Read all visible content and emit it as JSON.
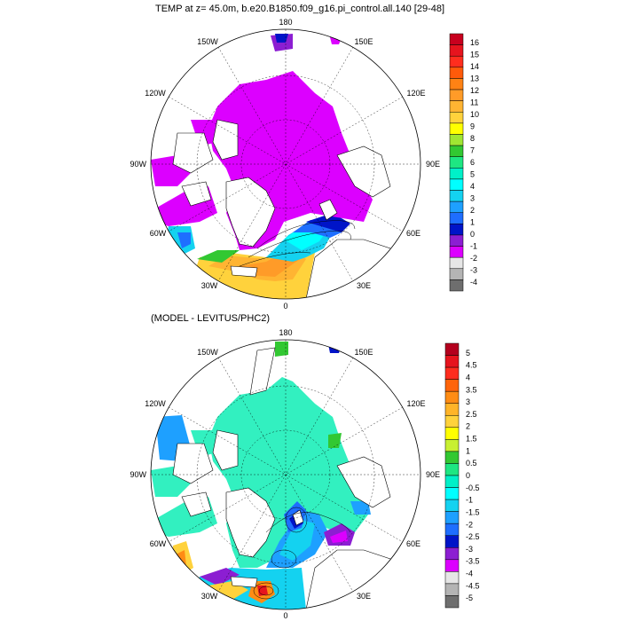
{
  "panels": [
    {
      "title": "TEMP at z=  45.0m, b.e20.B1850.f09_g16.pi_control.all.140 [29-48]",
      "lon_labels": {
        "top": "180",
        "bottom": "0",
        "ul": "150W",
        "ur": "150E",
        "l1": "120W",
        "r1": "120E",
        "l2": "90W",
        "r2": "90E",
        "l3": "60W",
        "r3": "60E",
        "ll": "30W",
        "lr": "30E"
      },
      "colorbar": {
        "labels": [
          "16",
          "15",
          "14",
          "13",
          "12",
          "11",
          "10",
          "9",
          "8",
          "7",
          "6",
          "5",
          "4",
          "3",
          "2",
          "1",
          "0",
          "-1",
          "-2",
          "-3",
          "-4"
        ],
        "colors": [
          "#c8001e",
          "#e6141e",
          "#ff2d1e",
          "#ff5a0a",
          "#ff8214",
          "#ff9b28",
          "#ffb432",
          "#ffd23c",
          "#ffff00",
          "#a0e632",
          "#32c832",
          "#1ee682",
          "#00f0c8",
          "#00ffff",
          "#14d2f0",
          "#1ea0ff",
          "#1e6eff",
          "#0014c8",
          "#8c1ed2",
          "#dc00ff",
          "#e6e6e6",
          "#b4b4b4",
          "#6e6e6e"
        ]
      }
    },
    {
      "title": "(MODEL - LEVITUS/PHC2)",
      "lon_labels": {
        "top": "180",
        "bottom": "0",
        "ul": "150W",
        "ur": "150E",
        "l1": "120W",
        "r1": "120E",
        "l2": "90W",
        "r2": "90E",
        "l3": "60W",
        "r3": "60E",
        "ll": "30W",
        "lr": "30E"
      },
      "colorbar": {
        "labels": [
          "5",
          "4.5",
          "4",
          "3.5",
          "3",
          "2.5",
          "2",
          "1.5",
          "1",
          "0.5",
          "0",
          "-0.5",
          "-1",
          "-1.5",
          "-2",
          "-2.5",
          "-3",
          "-3.5",
          "-4",
          "-4.5",
          "-5"
        ],
        "colors": [
          "#b4001e",
          "#e6141e",
          "#ff2d1e",
          "#ff640a",
          "#ff8c14",
          "#ffb428",
          "#ffd23c",
          "#ffff00",
          "#c8f032",
          "#32c832",
          "#1ee682",
          "#00f0c8",
          "#00ffff",
          "#14d2f0",
          "#1ea0ff",
          "#1e6eff",
          "#0014c8",
          "#8c1ed2",
          "#dc00ff",
          "#e6e6e6",
          "#b4b4b4",
          "#6e6e6e"
        ]
      }
    }
  ],
  "colors": {
    "land": "#ffffff",
    "arctic_cold": "#dc00ff",
    "anomaly_neutral": "#32f0c0",
    "coast": "#000000"
  }
}
